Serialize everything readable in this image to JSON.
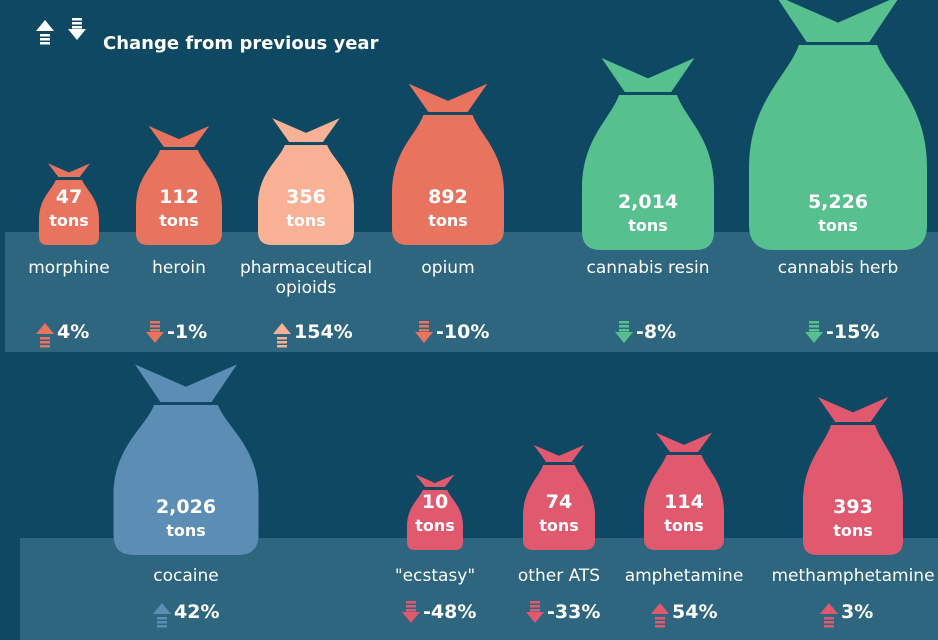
{
  "header": {
    "title": "Change from previous year"
  },
  "items": [
    {
      "name": "morphine",
      "value": "47",
      "unit": "tons",
      "change": "4%",
      "direction": "up",
      "color": "#e8735f"
    },
    {
      "name": "heroin",
      "value": "112",
      "unit": "tons",
      "change": "-1%",
      "direction": "down",
      "color": "#e8735f"
    },
    {
      "name": "pharmaceutical opioids",
      "value": "356",
      "unit": "tons",
      "change": "154%",
      "direction": "up",
      "color": "#f8b195"
    },
    {
      "name": "opium",
      "value": "892",
      "unit": "tons",
      "change": "-10%",
      "direction": "down",
      "color": "#e8735f"
    },
    {
      "name": "cannabis resin",
      "value": "2,014",
      "unit": "tons",
      "change": "-8%",
      "direction": "down",
      "color": "#56c08f"
    },
    {
      "name": "cannabis herb",
      "value": "5,226",
      "unit": "tons",
      "change": "-15%",
      "direction": "down",
      "color": "#56c08f"
    },
    {
      "name": "cocaine",
      "value": "2,026",
      "unit": "tons",
      "change": "42%",
      "direction": "up",
      "color": "#5b8db5"
    },
    {
      "name": "\"ecstasy\"",
      "value": "10",
      "unit": "tons",
      "change": "-48%",
      "direction": "down",
      "color": "#e0596f"
    },
    {
      "name": "other ATS",
      "value": "74",
      "unit": "tons",
      "change": "-33%",
      "direction": "down",
      "color": "#e0596f"
    },
    {
      "name": "amphetamine",
      "value": "114",
      "unit": "tons",
      "change": "54%",
      "direction": "up",
      "color": "#e0596f"
    },
    {
      "name": "methamphetamine",
      "value": "393",
      "unit": "tons",
      "change": "3%",
      "direction": "up",
      "color": "#e0596f"
    }
  ]
}
